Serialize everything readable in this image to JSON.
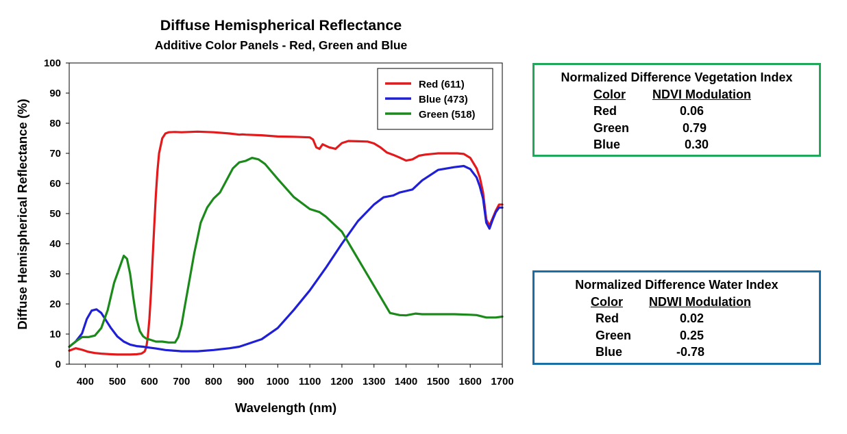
{
  "chart_data": {
    "type": "line",
    "title": "Diffuse Hemispherical Reflectance",
    "subtitle": "Additive Color Panels - Red, Green and Blue",
    "xlabel": "Wavelength (nm)",
    "ylabel": "Diffuse Hemispherical Reflectance (%)",
    "xlim": [
      350,
      1700
    ],
    "ylim": [
      0,
      100
    ],
    "xticks": [
      "400",
      "500",
      "600",
      "700",
      "800",
      "900",
      "1000",
      "1100",
      "1200",
      "1300",
      "1400",
      "1500",
      "1600",
      "1700"
    ],
    "yticks": [
      "0",
      "10",
      "20",
      "30",
      "40",
      "50",
      "60",
      "70",
      "80",
      "90",
      "100"
    ],
    "grid": false,
    "legend_position": "top-right",
    "series": [
      {
        "name": "Red (611)",
        "color": "#e31a1c",
        "x": [
          350,
          370,
          390,
          410,
          430,
          450,
          480,
          500,
          520,
          540,
          560,
          575,
          585,
          590,
          595,
          600,
          605,
          610,
          615,
          620,
          625,
          630,
          640,
          650,
          660,
          680,
          700,
          750,
          800,
          850,
          880,
          890,
          900,
          950,
          1000,
          1050,
          1100,
          1110,
          1120,
          1130,
          1140,
          1160,
          1180,
          1200,
          1220,
          1250,
          1280,
          1300,
          1320,
          1340,
          1360,
          1380,
          1400,
          1420,
          1440,
          1460,
          1500,
          1540,
          1560,
          1580,
          1600,
          1620,
          1630,
          1640,
          1650,
          1660,
          1670,
          1680,
          1690,
          1700
        ],
        "y": [
          4.5,
          5.3,
          4.8,
          4.1,
          3.7,
          3.5,
          3.3,
          3.2,
          3.2,
          3.2,
          3.3,
          3.5,
          4.2,
          5.5,
          9,
          15,
          24,
          35,
          46,
          56,
          64,
          70,
          75,
          76.6,
          77,
          77.1,
          77,
          77.2,
          77,
          76.6,
          76.2,
          76.3,
          76.2,
          76,
          75.6,
          75.5,
          75.3,
          74.6,
          72,
          71.5,
          73,
          72,
          71.5,
          73.4,
          74.1,
          74,
          73.9,
          73.3,
          72,
          70.3,
          69.5,
          68.6,
          67.6,
          68,
          69.2,
          69.6,
          70,
          70,
          70,
          69.8,
          68.5,
          65,
          62,
          57,
          48,
          46,
          48.5,
          51,
          53,
          53
        ]
      },
      {
        "name": "Blue (473)",
        "color": "#1f1fd6",
        "x": [
          350,
          370,
          390,
          405,
          420,
          435,
          450,
          465,
          480,
          500,
          520,
          540,
          560,
          580,
          600,
          620,
          650,
          700,
          750,
          800,
          850,
          880,
          900,
          950,
          1000,
          1050,
          1100,
          1150,
          1200,
          1250,
          1300,
          1330,
          1360,
          1380,
          1400,
          1420,
          1450,
          1500,
          1550,
          1580,
          1600,
          1620,
          1630,
          1640,
          1650,
          1660,
          1670,
          1680,
          1690,
          1700
        ],
        "y": [
          5.8,
          7.5,
          10.2,
          15,
          17.8,
          18.2,
          17,
          14.5,
          12,
          9.2,
          7.5,
          6.5,
          6,
          5.8,
          5.5,
          5.2,
          4.7,
          4.3,
          4.3,
          4.7,
          5.3,
          5.8,
          6.5,
          8.3,
          12,
          18,
          24.5,
          32,
          40,
          47.5,
          53,
          55.4,
          56,
          57,
          57.5,
          58,
          61,
          64.5,
          65.4,
          65.8,
          64.8,
          62,
          59,
          55,
          47,
          45,
          48,
          50.5,
          52,
          52
        ]
      },
      {
        "name": "Green (518)",
        "color": "#1b8a1b",
        "x": [
          350,
          370,
          390,
          410,
          430,
          450,
          470,
          490,
          510,
          520,
          530,
          540,
          550,
          560,
          570,
          580,
          590,
          600,
          620,
          640,
          660,
          680,
          690,
          700,
          710,
          720,
          730,
          740,
          750,
          760,
          780,
          800,
          820,
          840,
          860,
          880,
          900,
          920,
          940,
          960,
          980,
          1000,
          1050,
          1100,
          1130,
          1150,
          1200,
          1250,
          1300,
          1350,
          1380,
          1400,
          1430,
          1450,
          1500,
          1550,
          1600,
          1620,
          1650,
          1680,
          1700
        ],
        "y": [
          5.8,
          7.5,
          9,
          9,
          9.5,
          12,
          18,
          27,
          33,
          36,
          35,
          30,
          22,
          15,
          11,
          9.3,
          8.5,
          8.2,
          7.5,
          7.5,
          7.2,
          7.2,
          9,
          13,
          19,
          25,
          31,
          37,
          42,
          47,
          52,
          55,
          57,
          61,
          65,
          67,
          67.5,
          68.5,
          68,
          66.5,
          64,
          61.5,
          55.5,
          51.5,
          50.5,
          49,
          44,
          35,
          26,
          17,
          16.3,
          16.2,
          16.8,
          16.6,
          16.6,
          16.6,
          16.4,
          16.3,
          15.5,
          15.5,
          15.8
        ]
      }
    ]
  },
  "ndvi": {
    "title": "Normalized  Difference Vegetation Index",
    "col1": "Color",
    "col2": "NDVI Modulation",
    "rows": [
      {
        "color": "Red",
        "value": "0.06"
      },
      {
        "color": "Green",
        "value": "0.79"
      },
      {
        "color": "Blue",
        "value": "0.30"
      }
    ]
  },
  "ndwi": {
    "title": "Normalized  Difference Water Index",
    "col1": "Color",
    "col2": "NDWI Modulation",
    "rows": [
      {
        "color": "Red",
        "value": "0.02"
      },
      {
        "color": "Green",
        "value": "0.25"
      },
      {
        "color": "Blue",
        "value": "-0.78"
      }
    ]
  }
}
